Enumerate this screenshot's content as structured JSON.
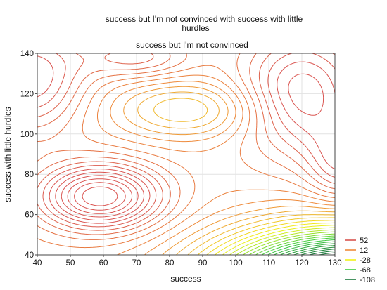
{
  "chart_data": {
    "type": "contour",
    "title_lines": [
      "success but I'm not convinced with success with little",
      "hurdles"
    ],
    "subtitle": "success but I'm not convinced",
    "xlabel": "success",
    "ylabel": "success with little hurdles",
    "xlim": [
      40,
      130
    ],
    "ylim": [
      40,
      140
    ],
    "xticks": [
      "40",
      "50",
      "60",
      "70",
      "80",
      "90",
      "100",
      "110",
      "120",
      "130"
    ],
    "yticks": [
      "40",
      "60",
      "80",
      "100",
      "120",
      "140"
    ],
    "grid": true,
    "legend_position": "bottom-right",
    "legend": [
      {
        "label": "52",
        "color": "#d9534f"
      },
      {
        "label": "12",
        "color": "#ee8a3a"
      },
      {
        "label": "-28",
        "color": "#f2f21a"
      },
      {
        "label": "-68",
        "color": "#3ecf3e"
      },
      {
        "label": "-108",
        "color": "#1a7a3a"
      }
    ],
    "features": [
      {
        "kind": "local max",
        "x": 59,
        "y": 69
      },
      {
        "kind": "local min (plateau)",
        "x": 85,
        "y": 112
      },
      {
        "kind": "steep decrease",
        "x": 125,
        "y": 40
      }
    ]
  }
}
